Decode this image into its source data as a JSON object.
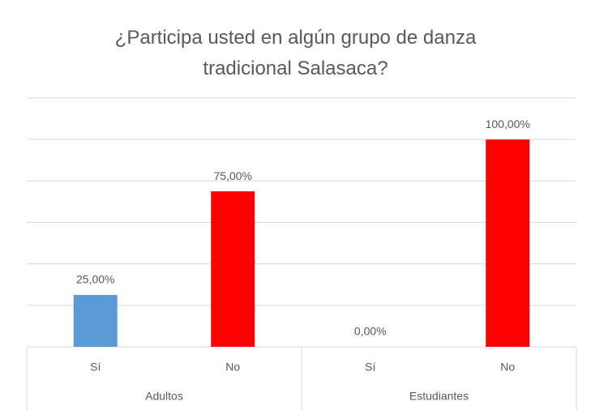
{
  "chart_data": {
    "type": "bar",
    "title": "¿Participa usted en algún grupo de danza tradicional Salasaca?",
    "categories": [
      "Sí",
      "No",
      "Sí",
      "No"
    ],
    "groups": [
      {
        "name": "Adultos",
        "size": 2
      },
      {
        "name": "Estudiantes",
        "size": 2
      }
    ],
    "values": [
      25,
      75,
      0,
      100
    ],
    "value_labels": [
      "25,00%",
      "75,00%",
      "0,00%",
      "100,00%"
    ],
    "colors": [
      "#5b9bd5",
      "#ff0000",
      "#5b9bd5",
      "#ff0000"
    ],
    "ylim": [
      0,
      120
    ],
    "yticks": [
      0,
      20,
      40,
      60,
      80,
      100,
      120
    ],
    "ytick_labels": false,
    "grid": true
  }
}
